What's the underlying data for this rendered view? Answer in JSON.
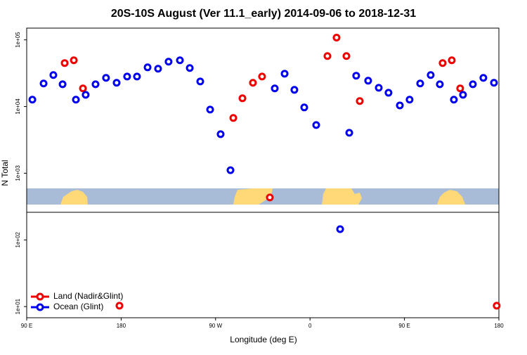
{
  "chart_data": {
    "type": "scatter",
    "title": "20S-10S August (Ver 11.1_early)   2014-09-06 to 2018-12-31",
    "xlabel": "Longitude (deg E)",
    "ylabel": "N Total",
    "xlim": [
      90,
      540
    ],
    "ylim": [
      6.8,
      150000
    ],
    "log_y": true,
    "legend": "bottom-left",
    "xticks": [
      {
        "value": 90,
        "label": "90 E"
      },
      {
        "value": 180,
        "label": "180"
      },
      {
        "value": 270,
        "label": "90 W"
      },
      {
        "value": 360,
        "label": "0"
      },
      {
        "value": 450,
        "label": "90 E"
      },
      {
        "value": 540,
        "label": "180"
      }
    ],
    "yticks": [
      {
        "value": 10,
        "label": "1e+01"
      },
      {
        "value": 100,
        "label": "1e+02"
      },
      {
        "value": 1000,
        "label": "1e+03"
      },
      {
        "value": 10000,
        "label": "1e+04"
      },
      {
        "value": 100000,
        "label": "1e+05"
      }
    ],
    "series": [
      {
        "name": "Land (Nadir&Glint)",
        "color": "#ee0000",
        "x": [
          126.2,
          134.9,
          143.6,
          178.4,
          286.9,
          295.6,
          305.6,
          314.3,
          321.7,
          376.6,
          385.3,
          394.7,
          407.4,
          486.4,
          495.1,
          503.1,
          537.9
        ],
        "values": [
          44900,
          49400,
          18700,
          10.3,
          6740,
          13300,
          22700,
          28200,
          433,
          57100,
          108000,
          57100,
          12100,
          44900,
          49400,
          18700,
          10.3
        ]
      },
      {
        "name": "Ocean (Glint)",
        "color": "#0000ee",
        "x": [
          95.4,
          106.1,
          115.4,
          124.2,
          136.9,
          146.2,
          155.6,
          165.6,
          175.7,
          185.7,
          195.1,
          205.2,
          215.2,
          225.2,
          236.0,
          245.4,
          255.4,
          264.8,
          274.8,
          284.2,
          326.4,
          335.8,
          345.1,
          354.5,
          365.9,
          388.7,
          397.4,
          404.0,
          415.4,
          425.5,
          434.8,
          445.6,
          454.9,
          465.0,
          475.0,
          483.7,
          497.1,
          505.8,
          515.2,
          525.2,
          535.3
        ],
        "values": [
          12700,
          22200,
          29700,
          21600,
          12700,
          15000,
          21600,
          26900,
          22700,
          28200,
          28200,
          38700,
          36900,
          47100,
          49400,
          37800,
          23800,
          9000,
          3850,
          1110,
          18700,
          31100,
          17800,
          9700,
          5280,
          145,
          4040,
          29000,
          24400,
          19100,
          16100,
          10400,
          12700,
          22200,
          29700,
          21600,
          12700,
          15000,
          21600,
          26900,
          22700
        ]
      }
    ]
  }
}
